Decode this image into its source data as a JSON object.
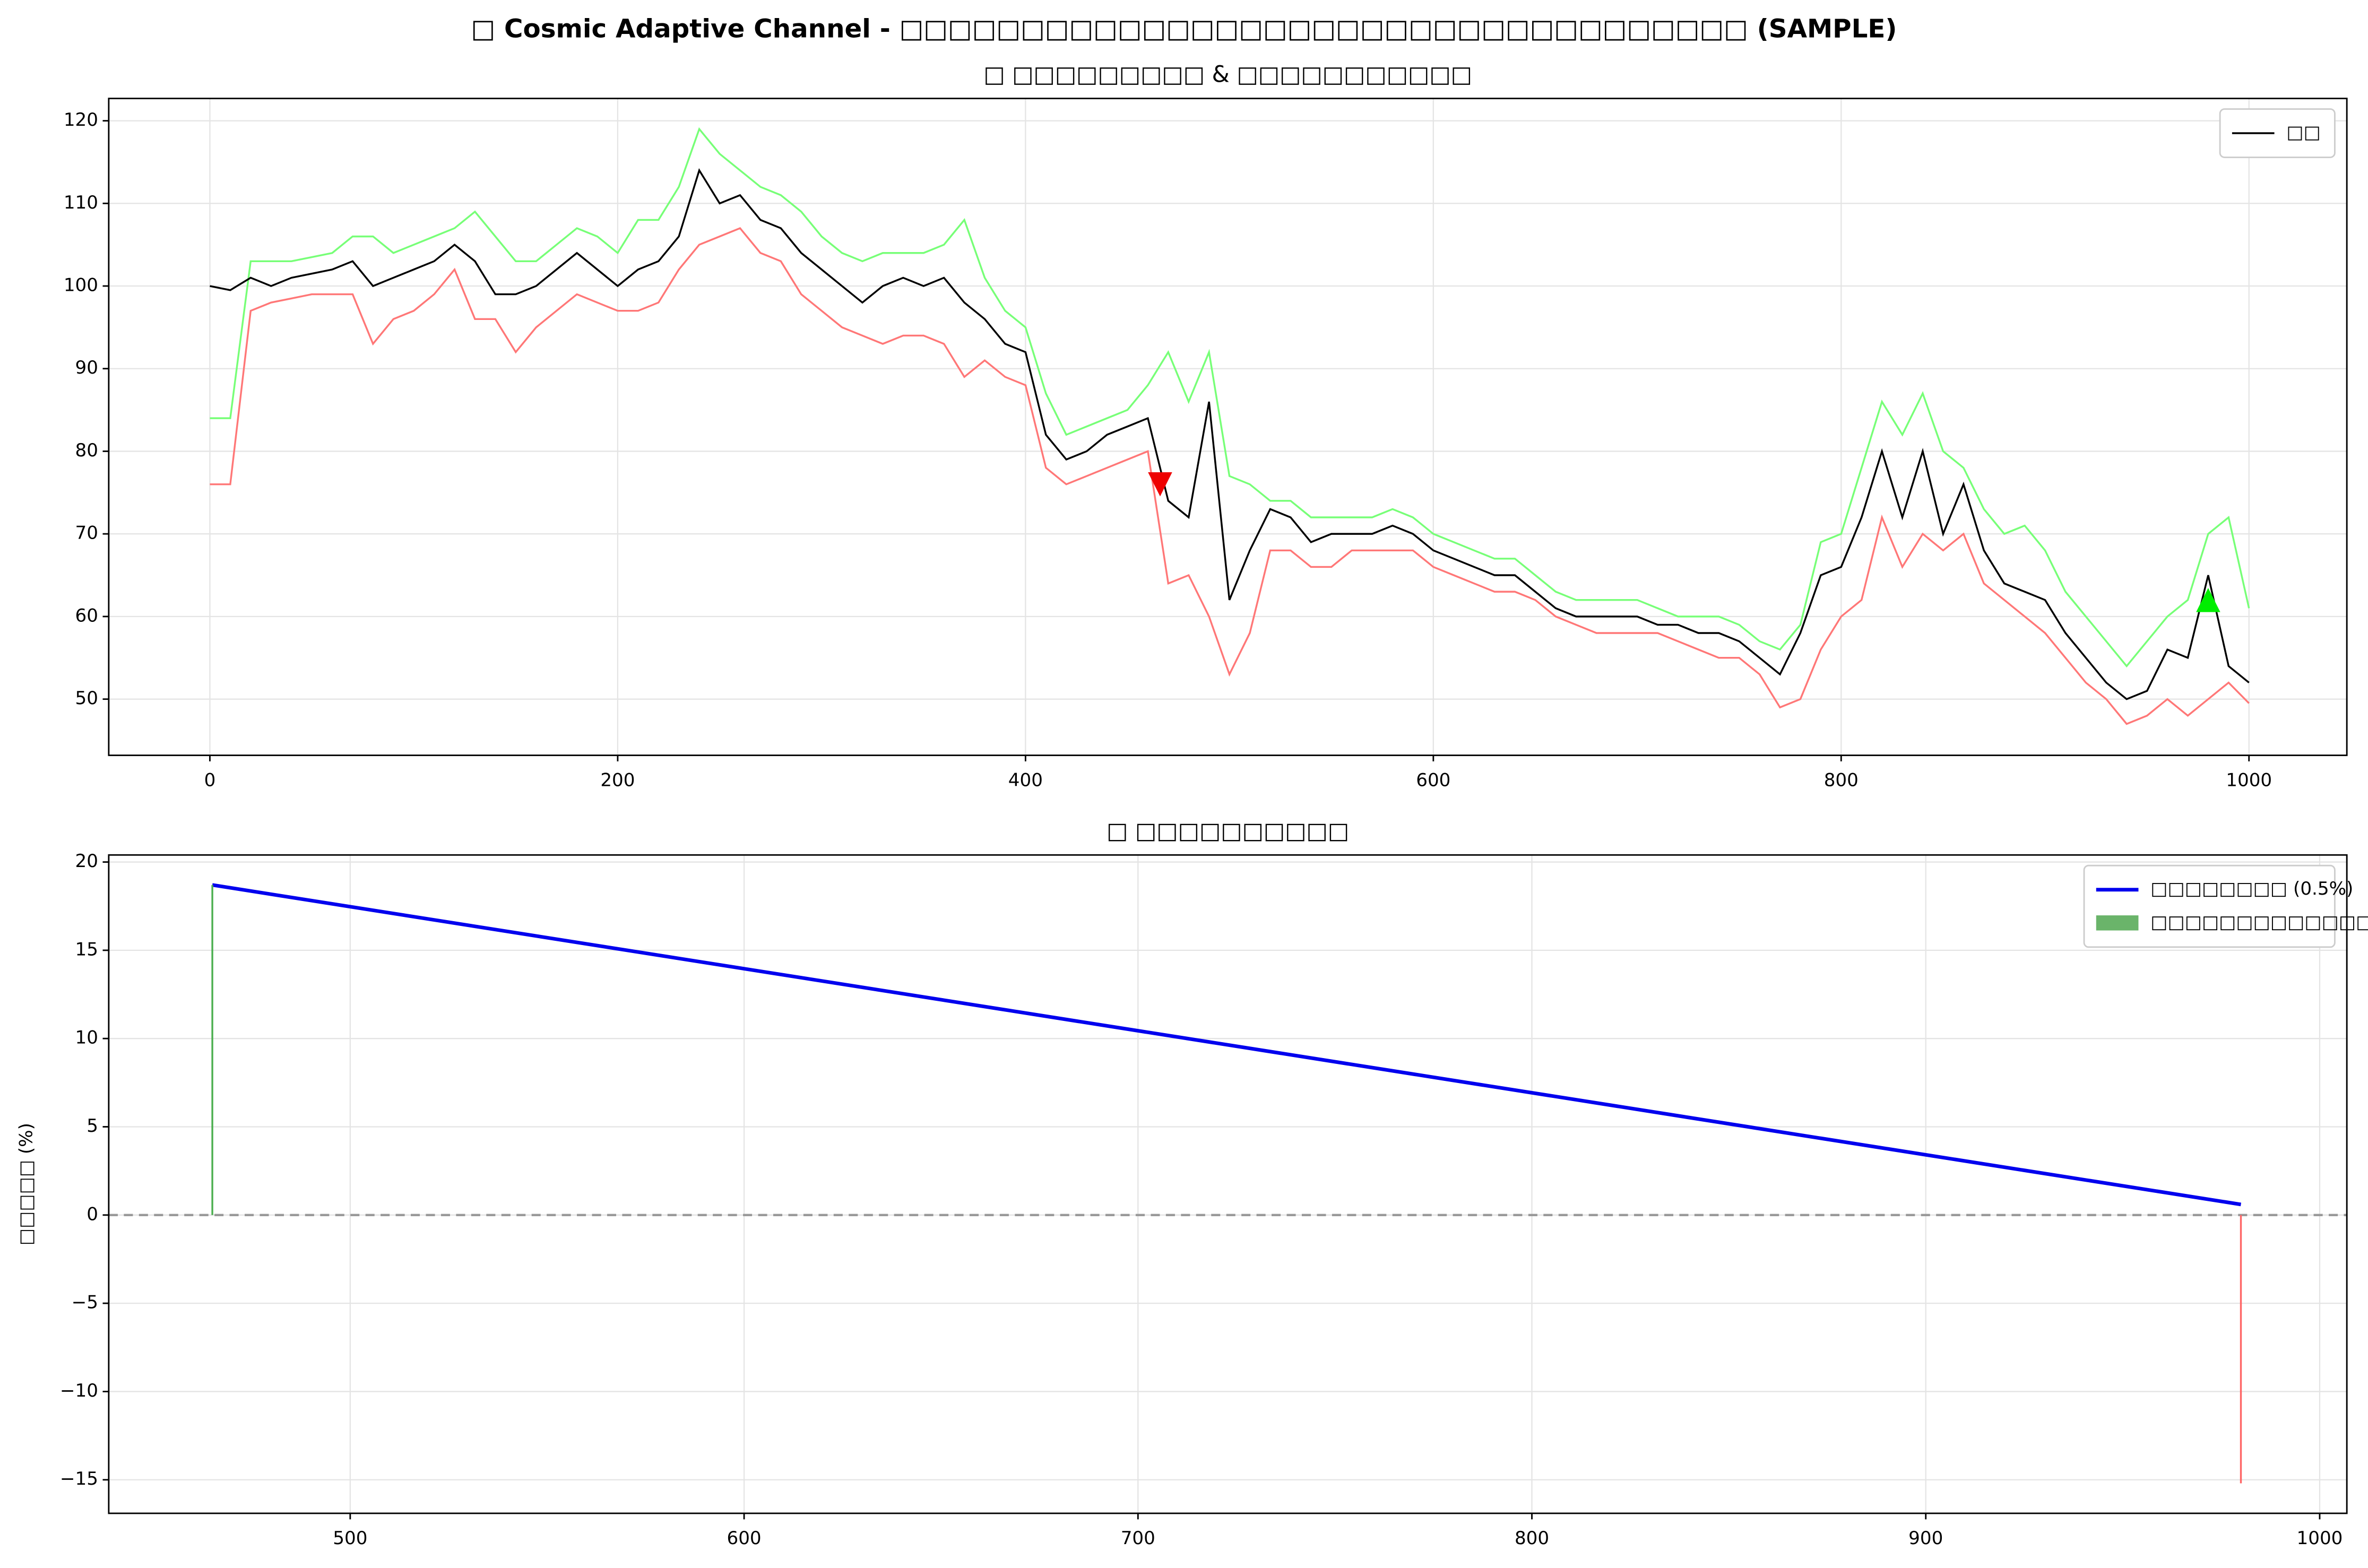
{
  "title": "□ Cosmic Adaptive Channel - □□□□□□□□□□□□□□□□□□□□□□□□□□□□□□□□□□□ (SAMPLE)",
  "chart_data": [
    {
      "type": "line",
      "title": "□ □□□□□□□□□ & □□□□□□□□□□□",
      "legend": "upper right",
      "grid": true,
      "xlim": [
        -49.6,
        1048
      ],
      "xticks": [
        0,
        200,
        400,
        600,
        800,
        1000
      ],
      "ylim": [
        43.2,
        122.7
      ],
      "yticks": [
        50,
        60,
        70,
        80,
        90,
        100,
        110,
        120
      ],
      "x": [
        0,
        10,
        20,
        30,
        40,
        50,
        60,
        70,
        80,
        90,
        100,
        110,
        120,
        130,
        140,
        150,
        160,
        170,
        180,
        190,
        200,
        210,
        220,
        230,
        240,
        250,
        260,
        270,
        280,
        290,
        300,
        310,
        320,
        330,
        340,
        350,
        360,
        370,
        380,
        390,
        400,
        410,
        420,
        430,
        440,
        450,
        460,
        470,
        480,
        490,
        500,
        510,
        520,
        530,
        540,
        550,
        560,
        570,
        580,
        590,
        600,
        610,
        620,
        630,
        640,
        650,
        660,
        670,
        680,
        690,
        700,
        710,
        720,
        730,
        740,
        750,
        760,
        770,
        780,
        790,
        800,
        810,
        820,
        830,
        840,
        850,
        860,
        870,
        880,
        890,
        900,
        910,
        920,
        930,
        940,
        950,
        960,
        970,
        980,
        990,
        1000
      ],
      "series": [
        {
          "color": "#77ff77",
          "values": [
            84,
            84,
            103,
            103,
            103,
            103.5,
            104,
            106,
            106,
            104,
            105,
            106,
            107,
            109,
            106,
            103,
            103,
            105,
            107,
            106,
            104,
            108,
            108,
            112,
            119,
            116,
            114,
            112,
            111,
            109,
            106,
            104,
            103,
            104,
            104,
            104,
            105,
            108,
            101,
            97,
            95,
            87,
            82,
            83,
            84,
            85,
            88,
            92,
            86,
            92,
            77,
            76,
            74,
            74,
            72,
            72,
            72,
            72,
            73,
            72,
            70,
            69,
            68,
            67,
            67,
            65,
            63,
            62,
            62,
            62,
            62,
            61,
            60,
            60,
            60,
            59,
            57,
            56,
            59,
            69,
            70,
            78,
            86,
            82,
            87,
            80,
            78,
            73,
            70,
            71,
            68,
            63,
            60,
            57,
            54,
            57,
            60,
            62,
            70,
            72,
            61
          ]
        },
        {
          "color": "#ff7777",
          "values": [
            76,
            76,
            97,
            98,
            98.5,
            99,
            99,
            99,
            93,
            96,
            97,
            99,
            102,
            96,
            96,
            92,
            95,
            97,
            99,
            98,
            97,
            97,
            98,
            102,
            105,
            106,
            107,
            104,
            103,
            99,
            97,
            95,
            94,
            93,
            94,
            94,
            93,
            89,
            91,
            89,
            88,
            78,
            76,
            77,
            78,
            79,
            80,
            64,
            65,
            60,
            53,
            58,
            68,
            68,
            66,
            66,
            68,
            68,
            68,
            68,
            66,
            65,
            64,
            63,
            63,
            62,
            60,
            59,
            58,
            58,
            58,
            58,
            57,
            56,
            55,
            55,
            53,
            49,
            50,
            56,
            60,
            62,
            72,
            66,
            70,
            68,
            70,
            64,
            62,
            60,
            58,
            55,
            52,
            50,
            47,
            48,
            50,
            48,
            50,
            52,
            49.5
          ]
        },
        {
          "name": "□□",
          "color": "#000000",
          "values": [
            100,
            99.5,
            101,
            100,
            101,
            101.5,
            102,
            103,
            100,
            101,
            102,
            103,
            105,
            103,
            99,
            99,
            100,
            102,
            104,
            102,
            100,
            102,
            103,
            106,
            114,
            110,
            111,
            108,
            107,
            104,
            102,
            100,
            98,
            100,
            101,
            100,
            101,
            98,
            96,
            93,
            92,
            82,
            79,
            80,
            82,
            83,
            84,
            74,
            72,
            86,
            62,
            68,
            73,
            72,
            69,
            70,
            70,
            70,
            71,
            70,
            68,
            67,
            66,
            65,
            65,
            63,
            61,
            60,
            60,
            60,
            60,
            59,
            59,
            58,
            58,
            57,
            55,
            53,
            58,
            65,
            66,
            72,
            80,
            72,
            80,
            70,
            76,
            68,
            64,
            63,
            62,
            58,
            55,
            52,
            50,
            51,
            56,
            55,
            65,
            54,
            52
          ]
        },
        {
          "marker": "down",
          "color": "#ee0000",
          "x": [
            466
          ],
          "values": [
            76
          ]
        },
        {
          "marker": "up",
          "color": "#00ee00",
          "x": [
            980
          ],
          "values": [
            62
          ]
        }
      ]
    },
    {
      "type": "line",
      "title": "□ □□□□□□□□□□",
      "ylabel": "□□□□□ (%)",
      "legend": "upper right",
      "grid": true,
      "hline": 0,
      "xlim": [
        438.7,
        1006.9
      ],
      "xticks": [
        500,
        600,
        700,
        800,
        900,
        1000
      ],
      "ylim": [
        -16.9,
        20.4
      ],
      "yticks": [
        {
          "value": -15,
          "label": "−15"
        },
        {
          "value": -10,
          "label": "−10"
        },
        {
          "value": -5,
          "label": "−5"
        },
        0,
        5,
        10,
        15,
        20
      ],
      "series": [
        {
          "name": "□□□□□□□□ (0.5%)",
          "color": "#0000ee",
          "x": [
            465,
            980
          ],
          "values": [
            18.7,
            0.6
          ]
        },
        {
          "name": "□□□□□□□□□□□□□",
          "type": "bar",
          "color": "#6ab46a",
          "colors": [
            "#4caf50",
            "#ff6666"
          ],
          "x": [
            465,
            980
          ],
          "values": [
            18.7,
            -15.2
          ]
        }
      ]
    }
  ]
}
